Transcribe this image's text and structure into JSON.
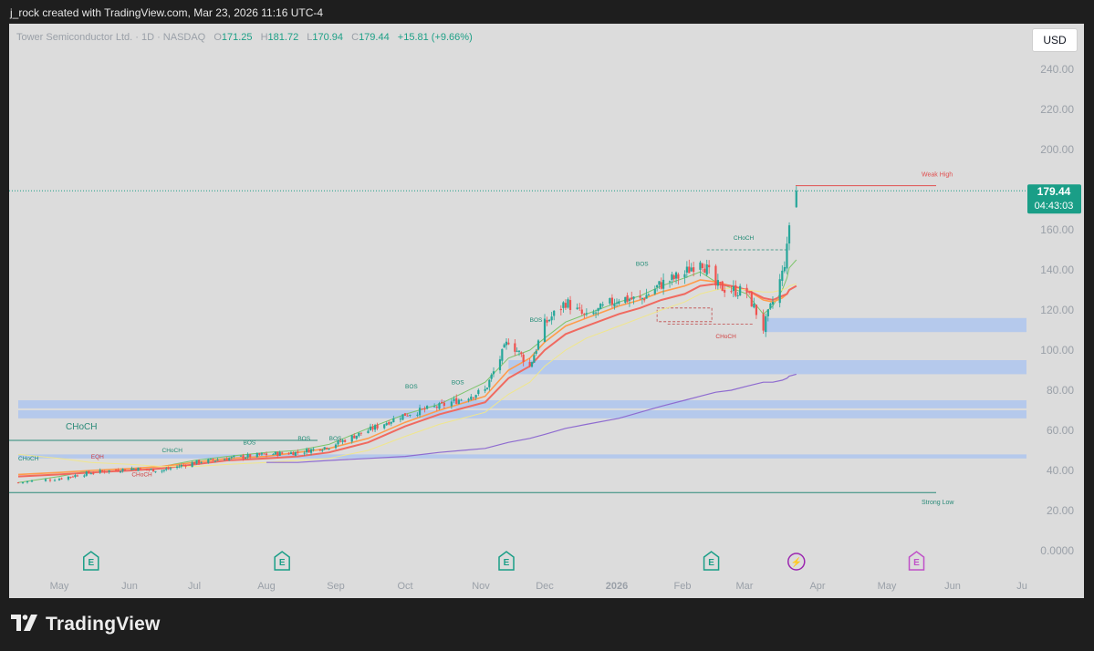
{
  "header": {
    "text": "j_rock created with TradingView.com, Mar 23, 2026 11:16 UTC-4"
  },
  "legend": {
    "symbol": "Tower Semiconductor Ltd. · 1D · NASDAQ",
    "o_label": "O",
    "o_value": "171.25",
    "h_label": "H",
    "h_value": "181.72",
    "l_label": "L",
    "l_value": "170.94",
    "c_label": "C",
    "c_value": "179.44",
    "change": "+15.81 (+9.66%)"
  },
  "currency_button": "USD",
  "footer": {
    "brand": "TradingView"
  },
  "colors": {
    "up": "#26a69a",
    "down": "#ef5350",
    "ema_fast": "#7cc46a",
    "ema_mid": "#ff9b4a",
    "ema_slow": "#f06a60",
    "sma_50": "#f0e68c",
    "sma_200": "#8e6bd0",
    "zone": "#aec6ef",
    "price_tag": "#1a9e87",
    "earnings": "#1a9e87",
    "dividend": "#9c27b0"
  },
  "chart_data": {
    "type": "candlestick",
    "title": "Tower Semiconductor Ltd. · 1D · NASDAQ",
    "y_axis_ticks": [
      "240.00",
      "220.00",
      "200.00",
      "180.00",
      "160.00",
      "140.00",
      "120.00",
      "100.00",
      "80.00",
      "60.00",
      "40.00",
      "20.00",
      "0.0000"
    ],
    "ylim": [
      0,
      240
    ],
    "x_axis_ticks": [
      "May",
      "Jun",
      "Jul",
      "Aug",
      "Sep",
      "Oct",
      "Nov",
      "Dec",
      "2026",
      "Feb",
      "Mar",
      "Apr",
      "May",
      "Jun",
      "Ju"
    ],
    "last_price": {
      "value": "179.44",
      "countdown": "04:43:03"
    },
    "close_series": {
      "dates": [
        "2025-04-22",
        "2025-05-01",
        "2025-05-15",
        "2025-06-02",
        "2025-06-16",
        "2025-07-01",
        "2025-07-15",
        "2025-08-01",
        "2025-08-15",
        "2025-08-29",
        "2025-09-15",
        "2025-10-01",
        "2025-10-15",
        "2025-11-03",
        "2025-11-14",
        "2025-11-24",
        "2025-12-01",
        "2025-12-10",
        "2025-12-19",
        "2026-01-02",
        "2026-01-12",
        "2026-01-22",
        "2026-02-02",
        "2026-02-09",
        "2026-02-16",
        "2026-02-23",
        "2026-03-02",
        "2026-03-09",
        "2026-03-13",
        "2026-03-17",
        "2026-03-19",
        "2026-03-20",
        "2026-03-23"
      ],
      "values": [
        34,
        36,
        39,
        41,
        40,
        44,
        46,
        48,
        49,
        52,
        60,
        68,
        72,
        80,
        105,
        92,
        113,
        124,
        116,
        126,
        125,
        133,
        138,
        146,
        132,
        130,
        129,
        111,
        124,
        138,
        150,
        163,
        179.44
      ]
    },
    "indicators": [
      {
        "name": "EMA fast",
        "values": [
          34,
          37,
          40,
          41,
          42,
          45,
          47,
          49,
          50,
          53,
          61,
          68,
          73,
          84,
          96,
          100,
          106,
          114,
          118,
          124,
          127,
          132,
          136,
          139,
          134,
          131,
          128,
          118,
          122,
          130,
          136,
          141,
          145
        ]
      },
      {
        "name": "EMA mid",
        "values": [
          38,
          39,
          40,
          41,
          42,
          44,
          46,
          47,
          49,
          51,
          56,
          64,
          70,
          77,
          90,
          96,
          104,
          112,
          116,
          122,
          125,
          129,
          132,
          135,
          134,
          132,
          130,
          125,
          124,
          126,
          128,
          130,
          132
        ]
      },
      {
        "name": "EMA slow",
        "values": [
          37,
          38,
          39,
          40,
          41,
          43,
          45,
          46,
          47,
          49,
          54,
          62,
          68,
          74,
          86,
          92,
          100,
          108,
          112,
          118,
          121,
          125,
          128,
          132,
          133,
          132,
          130,
          126,
          125,
          127,
          128,
          130,
          132
        ]
      },
      {
        "name": "SMA 50",
        "values": [
          48,
          46,
          44,
          43,
          42,
          42,
          43,
          44,
          45,
          46,
          50,
          57,
          63,
          69,
          78,
          84,
          92,
          100,
          106,
          112,
          116,
          120,
          124,
          128,
          130,
          131,
          130,
          129,
          129,
          130,
          131,
          132,
          133
        ]
      },
      {
        "name": "SMA 200",
        "values": [
          null,
          null,
          null,
          null,
          null,
          null,
          null,
          44,
          44,
          45,
          46,
          47,
          49,
          51,
          54,
          56,
          58,
          61,
          63,
          66,
          69,
          72,
          75,
          77,
          79,
          80,
          82,
          84,
          84,
          85,
          86,
          87,
          88
        ]
      }
    ],
    "zones": [
      {
        "top": 116,
        "bottom": 109,
        "from": "2026-03-09"
      },
      {
        "top": 95,
        "bottom": 88,
        "from": "2025-11-14"
      },
      {
        "top": 75,
        "bottom": 71,
        "from": "2025-04-22"
      },
      {
        "top": 70,
        "bottom": 66,
        "from": "2025-04-22"
      },
      {
        "top": 48,
        "bottom": 46,
        "from": "2025-04-22"
      }
    ],
    "levels": [
      {
        "label": "Weak High",
        "value": 182
      },
      {
        "label": "Strong Low",
        "value": 29
      },
      {
        "label": "CHoCH",
        "value": 55
      }
    ],
    "annotations": [
      {
        "text": "CHoCH",
        "date": "2025-04-22",
        "value": 45
      },
      {
        "text": "EQH",
        "date": "2025-05-15",
        "value": 46
      },
      {
        "text": "CHoCH",
        "date": "2025-06-02",
        "value": 37
      },
      {
        "text": "CHoCH",
        "date": "2025-06-16",
        "value": 49
      },
      {
        "text": "BOS",
        "date": "2025-07-22",
        "value": 53
      },
      {
        "text": "BOS",
        "date": "2025-08-15",
        "value": 55
      },
      {
        "text": "BOS",
        "date": "2025-08-29",
        "value": 55
      },
      {
        "text": "BOS",
        "date": "2025-10-01",
        "value": 81
      },
      {
        "text": "BOS",
        "date": "2025-10-20",
        "value": 83
      },
      {
        "text": "BOS",
        "date": "2025-11-24",
        "value": 114
      },
      {
        "text": "BOS",
        "date": "2026-01-10",
        "value": 142
      },
      {
        "text": "CHoCH",
        "date": "2026-02-24",
        "value": 155
      },
      {
        "text": "CHoCH",
        "date": "2026-02-16",
        "value": 106
      }
    ],
    "events": [
      {
        "type": "earnings",
        "label": "E",
        "date": "2025-05-15"
      },
      {
        "type": "earnings",
        "label": "E",
        "date": "2025-08-08"
      },
      {
        "type": "earnings",
        "label": "E",
        "date": "2025-11-13"
      },
      {
        "type": "earnings",
        "label": "E",
        "date": "2026-02-14"
      },
      {
        "type": "dividend",
        "label": "⚡",
        "date": "2026-03-23"
      },
      {
        "type": "earnings-upcoming",
        "label": "E",
        "date": "2026-05-15"
      }
    ]
  }
}
